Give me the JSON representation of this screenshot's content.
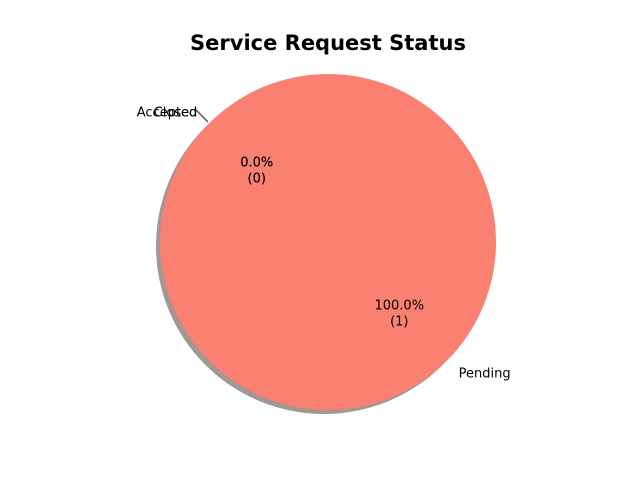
{
  "chart_data": {
    "type": "pie",
    "title": "Service Request Status",
    "categories": [
      "Accepted",
      "Closed",
      "Pending"
    ],
    "values": [
      0,
      0,
      1
    ],
    "percent_labels": [
      "0.0%",
      "0.0%",
      "100.0%"
    ],
    "count_labels": [
      "(0)",
      "(0)",
      "(1)"
    ],
    "colors": [
      "#6fa8dc",
      "#9dd49d",
      "#fa8072"
    ],
    "shadow": true,
    "start_angle_deg": 135,
    "shadow_color": "#a39794",
    "leader_line_color": "#4d4d4d"
  }
}
